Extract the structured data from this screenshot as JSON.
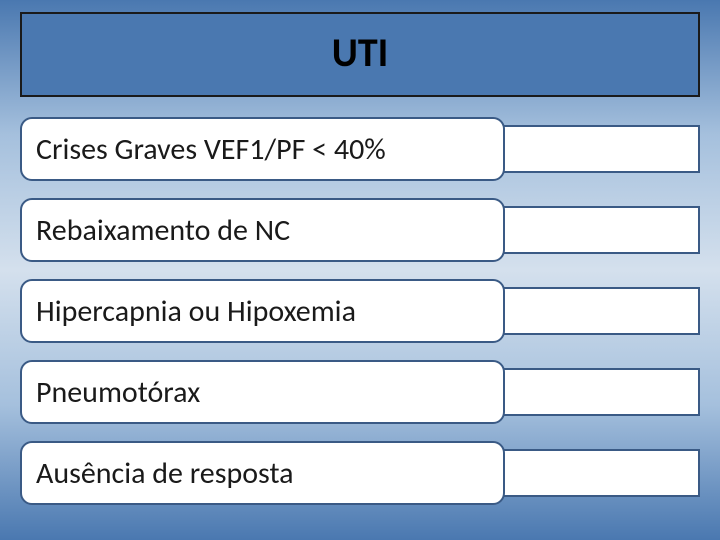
{
  "title": "UTI",
  "items": [
    "Crises Graves VEF1/PF < 40%",
    "Rebaixamento de NC",
    "Hipercapnia ou Hipoxemia",
    "Pneumotórax",
    "Ausência de resposta"
  ],
  "style": {
    "title_box_bg": "#4a78b0",
    "title_box_border": "#1a1a1a",
    "title_fontsize": 40,
    "pill_bg": "#ffffff",
    "pill_border": "#3a5a85",
    "pill_fontsize": 30,
    "pill_radius": 12,
    "background_gradient": [
      "#4a78b0",
      "#a5c0dd",
      "#d4e0ed",
      "#a5c0dd",
      "#4a78b0"
    ]
  }
}
